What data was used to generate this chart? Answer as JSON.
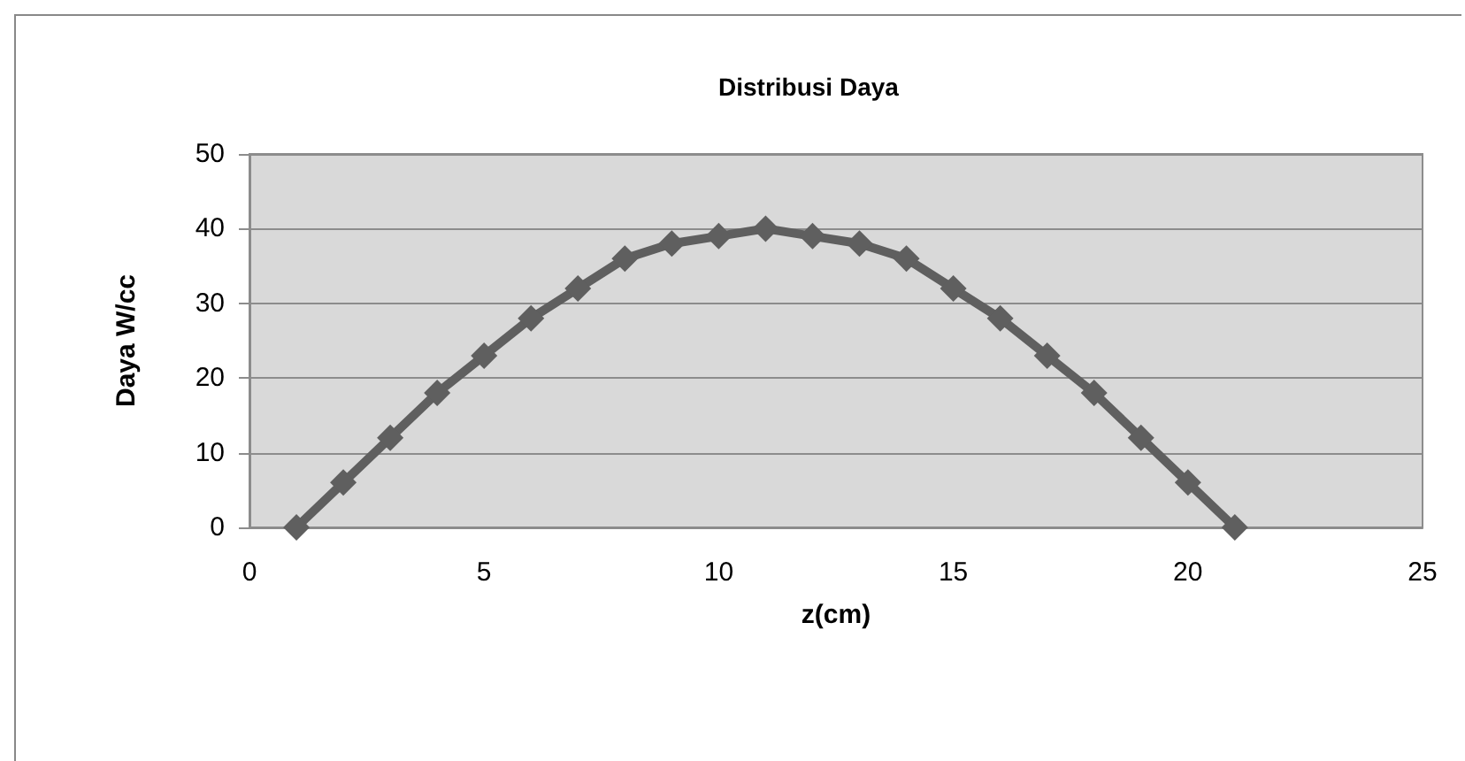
{
  "chart_data": {
    "type": "line",
    "title": "Distribusi Daya",
    "xlabel": "z(cm)",
    "ylabel": "Daya W/cc",
    "x": [
      1,
      2,
      3,
      4,
      5,
      6,
      7,
      8,
      9,
      10,
      11,
      12,
      13,
      14,
      15,
      16,
      17,
      18,
      19,
      20,
      21
    ],
    "series": [
      {
        "color": "#5f5f5f",
        "values": [
          0,
          6,
          12,
          18,
          23,
          28,
          32,
          36,
          38,
          39,
          40,
          39,
          38,
          36,
          32,
          28,
          23,
          18,
          12,
          6,
          0
        ]
      }
    ],
    "xlim": [
      0,
      25
    ],
    "xticks": [
      0,
      5,
      10,
      15,
      20,
      25
    ],
    "ylim": [
      0,
      50
    ],
    "yticks": [
      0,
      10,
      20,
      30,
      40,
      50
    ],
    "grid": "y",
    "marker": "diamond",
    "line_style": "solid"
  }
}
